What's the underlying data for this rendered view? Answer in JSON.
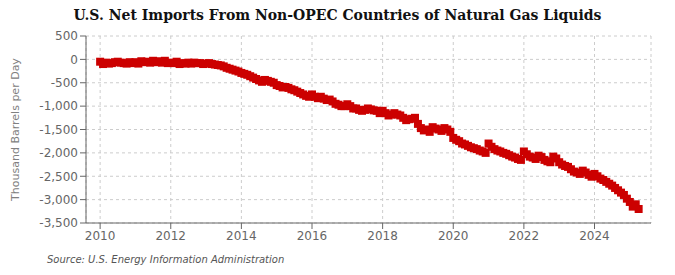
{
  "chart_data": {
    "type": "scatter",
    "title": "U.S. Net Imports From Non-OPEC Countries of Natural Gas Liquids",
    "y_label": "Thousand Barrels per Day",
    "annotation": "Source: U.S. Energy Information Administration",
    "color": "#cc0000",
    "marker": "square",
    "grid": true,
    "xlim": [
      2009.6,
      2025.6
    ],
    "xticks": [
      2010,
      2012,
      2014,
      2016,
      2018,
      2020,
      2022,
      2024
    ],
    "ylim": [
      -3500,
      500
    ],
    "yticks": [
      500,
      0,
      -500,
      {
        "value": -1000,
        "label": "-1,000"
      },
      {
        "value": -1500,
        "label": "-1,500"
      },
      {
        "value": -2000,
        "label": "-2,000"
      },
      {
        "value": -2500,
        "label": "-2,500"
      },
      {
        "value": -3000,
        "label": "-3,000"
      },
      {
        "value": -3500,
        "label": "-3,500"
      }
    ],
    "x": [
      2010.0,
      2010.083,
      2010.167,
      2010.25,
      2010.333,
      2010.417,
      2010.5,
      2010.583,
      2010.667,
      2010.75,
      2010.833,
      2010.917,
      2011.0,
      2011.083,
      2011.167,
      2011.25,
      2011.333,
      2011.417,
      2011.5,
      2011.583,
      2011.667,
      2011.75,
      2011.833,
      2011.917,
      2012.0,
      2012.083,
      2012.167,
      2012.25,
      2012.333,
      2012.417,
      2012.5,
      2012.583,
      2012.667,
      2012.75,
      2012.833,
      2012.917,
      2013.0,
      2013.083,
      2013.167,
      2013.25,
      2013.333,
      2013.417,
      2013.5,
      2013.583,
      2013.667,
      2013.75,
      2013.833,
      2013.917,
      2014.0,
      2014.083,
      2014.167,
      2014.25,
      2014.333,
      2014.417,
      2014.5,
      2014.583,
      2014.667,
      2014.75,
      2014.833,
      2014.917,
      2015.0,
      2015.083,
      2015.167,
      2015.25,
      2015.333,
      2015.417,
      2015.5,
      2015.583,
      2015.667,
      2015.75,
      2015.833,
      2015.917,
      2016.0,
      2016.083,
      2016.167,
      2016.25,
      2016.333,
      2016.417,
      2016.5,
      2016.583,
      2016.667,
      2016.75,
      2016.833,
      2016.917,
      2017.0,
      2017.083,
      2017.167,
      2017.25,
      2017.333,
      2017.417,
      2017.5,
      2017.583,
      2017.667,
      2017.75,
      2017.833,
      2017.917,
      2018.0,
      2018.083,
      2018.167,
      2018.25,
      2018.333,
      2018.417,
      2018.5,
      2018.583,
      2018.667,
      2018.75,
      2018.833,
      2018.917,
      2019.0,
      2019.083,
      2019.167,
      2019.25,
      2019.333,
      2019.417,
      2019.5,
      2019.583,
      2019.667,
      2019.75,
      2019.833,
      2019.917,
      2020.0,
      2020.083,
      2020.167,
      2020.25,
      2020.333,
      2020.417,
      2020.5,
      2020.583,
      2020.667,
      2020.75,
      2020.833,
      2020.917,
      2021.0,
      2021.083,
      2021.167,
      2021.25,
      2021.333,
      2021.417,
      2021.5,
      2021.583,
      2021.667,
      2021.75,
      2021.833,
      2021.917,
      2022.0,
      2022.083,
      2022.167,
      2022.25,
      2022.333,
      2022.417,
      2022.5,
      2022.583,
      2022.667,
      2022.75,
      2022.833,
      2022.917,
      2023.0,
      2023.083,
      2023.167,
      2023.25,
      2023.333,
      2023.417,
      2023.5,
      2023.583,
      2023.667,
      2023.75,
      2023.833,
      2023.917,
      2024.0,
      2024.083,
      2024.167,
      2024.25,
      2024.333,
      2024.417,
      2024.5,
      2024.583,
      2024.667,
      2024.75,
      2024.833,
      2024.917,
      2025.0,
      2025.083,
      2025.167,
      2025.25
    ],
    "values": [
      -50,
      -100,
      -70,
      -90,
      -80,
      -60,
      -50,
      -70,
      -80,
      -90,
      -60,
      -80,
      -60,
      -90,
      -40,
      -60,
      -50,
      -70,
      -30,
      -60,
      -40,
      -70,
      -30,
      -80,
      -70,
      -80,
      -50,
      -100,
      -80,
      -90,
      -70,
      -90,
      -70,
      -80,
      -80,
      -100,
      -90,
      -80,
      -100,
      -110,
      -120,
      -130,
      -150,
      -180,
      -200,
      -220,
      -240,
      -260,
      -290,
      -310,
      -330,
      -360,
      -390,
      -420,
      -450,
      -480,
      -440,
      -460,
      -480,
      -500,
      -550,
      -570,
      -600,
      -590,
      -610,
      -640,
      -660,
      -690,
      -720,
      -750,
      -780,
      -800,
      -750,
      -800,
      -830,
      -800,
      -840,
      -870,
      -860,
      -900,
      -950,
      -970,
      -1000,
      -1000,
      -960,
      -1000,
      -1050,
      -1050,
      -1080,
      -1100,
      -1080,
      -1050,
      -1070,
      -1090,
      -1100,
      -1150,
      -1100,
      -1150,
      -1200,
      -1180,
      -1150,
      -1180,
      -1200,
      -1250,
      -1300,
      -1280,
      -1270,
      -1250,
      -1380,
      -1470,
      -1520,
      -1500,
      -1550,
      -1450,
      -1480,
      -1500,
      -1530,
      -1470,
      -1500,
      -1550,
      -1680,
      -1720,
      -1750,
      -1800,
      -1820,
      -1850,
      -1880,
      -1900,
      -1920,
      -1950,
      -1970,
      -2000,
      -1800,
      -1870,
      -1920,
      -1950,
      -1970,
      -2000,
      -2020,
      -2050,
      -2080,
      -2100,
      -2130,
      -2150,
      -1970,
      -2030,
      -2080,
      -2100,
      -2130,
      -2060,
      -2090,
      -2150,
      -2180,
      -2200,
      -2080,
      -2120,
      -2200,
      -2250,
      -2280,
      -2300,
      -2350,
      -2400,
      -2420,
      -2450,
      -2380,
      -2420,
      -2470,
      -2510,
      -2450,
      -2500,
      -2550,
      -2580,
      -2620,
      -2660,
      -2700,
      -2750,
      -2800,
      -2850,
      -2900,
      -2980,
      -3050,
      -3150,
      -3100,
      -3200
    ]
  }
}
